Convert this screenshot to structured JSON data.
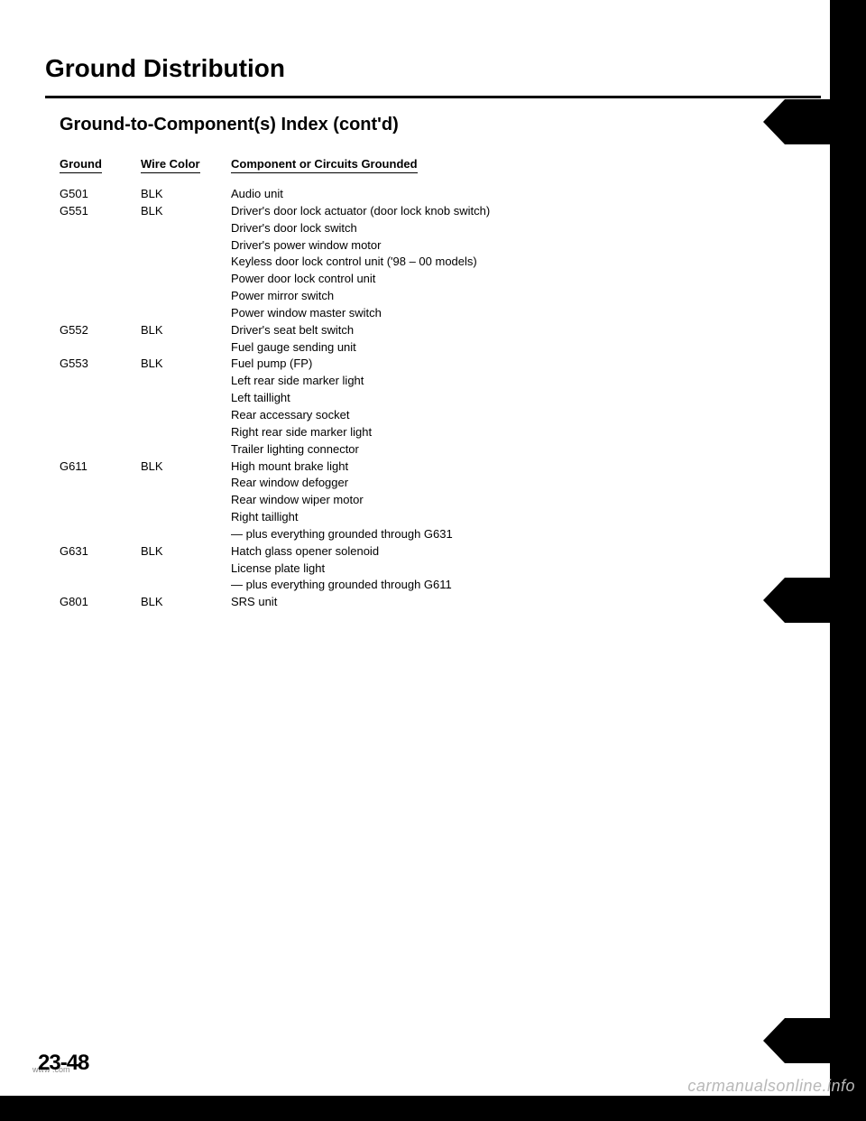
{
  "title": "Ground Distribution",
  "subtitle": "Ground-to-Component(s) Index (cont'd)",
  "headers": {
    "ground": "Ground",
    "wire": "Wire Color",
    "comp": "Component or Circuits Grounded"
  },
  "rows": [
    {
      "ground": "G501",
      "wire": "BLK",
      "components": [
        "Audio unit"
      ]
    },
    {
      "ground": "G551",
      "wire": "BLK",
      "components": [
        "Driver's door lock actuator (door lock knob switch)",
        "Driver's door lock switch",
        "Driver's power window motor",
        "Keyless door lock control unit ('98 – 00 models)",
        "Power door lock control unit",
        "Power mirror switch",
        "Power window master switch"
      ]
    },
    {
      "ground": "G552",
      "wire": "BLK",
      "components": [
        "Driver's seat belt switch",
        "Fuel gauge sending unit"
      ]
    },
    {
      "ground": "G553",
      "wire": "BLK",
      "components": [
        "Fuel pump (FP)",
        "Left rear side marker light",
        "Left taillight",
        "Rear accessary socket",
        "Right rear side marker light",
        "Trailer lighting connector"
      ]
    },
    {
      "ground": "G611",
      "wire": "BLK",
      "components": [
        "High mount brake light",
        "Rear window defogger",
        "Rear window wiper motor",
        "Right taillight",
        "— plus everything grounded through G631"
      ]
    },
    {
      "ground": "G631",
      "wire": "BLK",
      "components": [
        "Hatch glass opener solenoid",
        "License plate light",
        "— plus everything grounded through G611"
      ]
    },
    {
      "ground": "G801",
      "wire": "BLK",
      "components": [
        "SRS unit"
      ]
    }
  ],
  "page_number": "23-48",
  "watermark": "carmanualsonline.info",
  "www": "www            .com"
}
